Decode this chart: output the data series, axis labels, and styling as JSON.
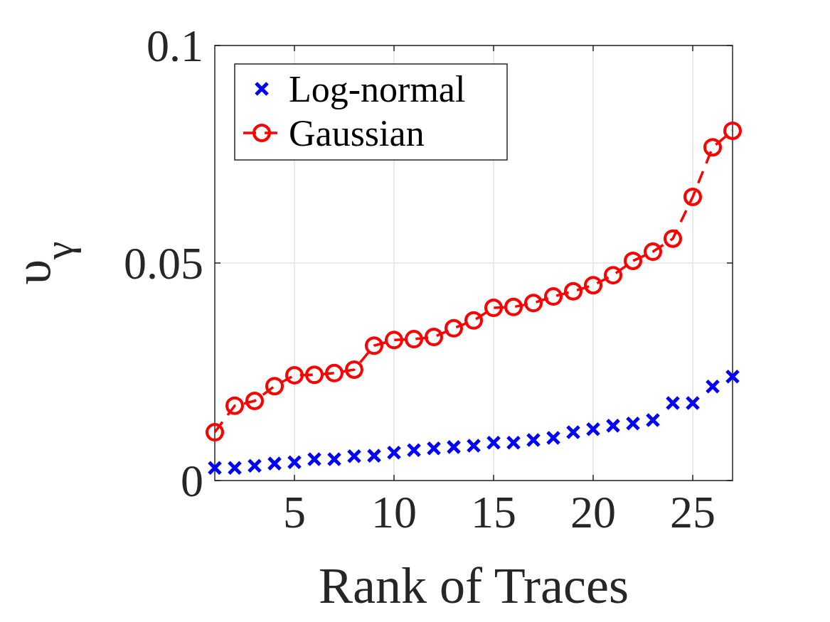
{
  "chart_data": {
    "type": "line",
    "xlabel": "Rank of Traces",
    "ylabel": "υ$_{γ}$",
    "x": [
      1,
      2,
      3,
      4,
      5,
      6,
      7,
      8,
      9,
      10,
      11,
      12,
      13,
      14,
      15,
      16,
      17,
      18,
      19,
      20,
      21,
      22,
      23,
      24,
      25,
      26,
      27
    ],
    "series": [
      {
        "name": "Log-normal",
        "type": "scatter",
        "color": "#0000ff",
        "marker": "cross",
        "values": [
          0.0029,
          0.0029,
          0.0034,
          0.0039,
          0.0042,
          0.0049,
          0.0049,
          0.0056,
          0.0057,
          0.0064,
          0.007,
          0.0074,
          0.0077,
          0.008,
          0.0087,
          0.0087,
          0.0093,
          0.0098,
          0.0111,
          0.0118,
          0.0126,
          0.0131,
          0.0139,
          0.0178,
          0.0178,
          0.0216,
          0.0239
        ]
      },
      {
        "name": "Gaussian",
        "color": "#ff0000",
        "marker": "circle",
        "line_style": "dashed",
        "values": [
          0.0111,
          0.0172,
          0.0183,
          0.0217,
          0.0242,
          0.0243,
          0.0247,
          0.0255,
          0.031,
          0.0323,
          0.0325,
          0.033,
          0.035,
          0.0368,
          0.0397,
          0.0399,
          0.0408,
          0.0423,
          0.0435,
          0.0449,
          0.0472,
          0.0505,
          0.0526,
          0.0556,
          0.0652,
          0.0766,
          0.0804
        ]
      }
    ],
    "xlim": [
      1,
      27
    ],
    "xticks": [
      5,
      10,
      15,
      20,
      25
    ],
    "ylim": [
      0,
      0.1
    ],
    "yticks": [
      0,
      0.05,
      0.1
    ],
    "grid": true,
    "legend": "top left"
  }
}
